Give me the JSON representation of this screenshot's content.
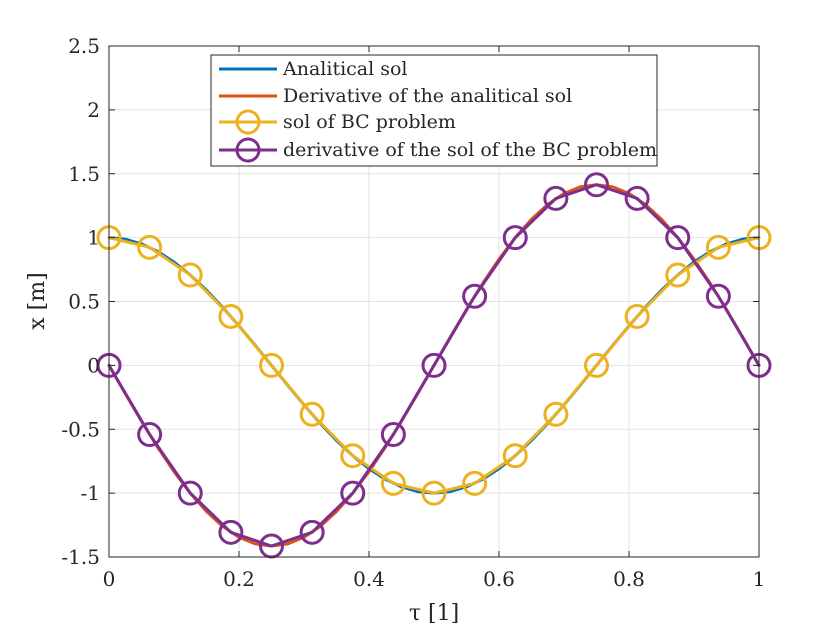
{
  "chart_data": {
    "type": "line",
    "xlabel": "τ [1]",
    "ylabel": "x [m]",
    "xlim": [
      0,
      1
    ],
    "ylim": [
      -1.5,
      2.5
    ],
    "xticks": [
      0,
      0.2,
      0.4,
      0.6,
      0.8,
      1
    ],
    "xtick_labels": [
      "0",
      "0.2",
      "0.4",
      "0.6",
      "0.8",
      "1"
    ],
    "yticks": [
      -1.5,
      -1,
      -0.5,
      0,
      0.5,
      1,
      1.5,
      2,
      2.5
    ],
    "ytick_labels": [
      "-1.5",
      "-1",
      "-0.5",
      "0",
      "0.5",
      "1",
      "1.5",
      "2",
      "2.5"
    ],
    "grid": true,
    "legend_position": "top-center",
    "series": [
      {
        "name": "Analitical sol",
        "style": "line",
        "color": "#0072BD",
        "x": [
          0,
          0.025,
          0.05,
          0.075,
          0.1,
          0.125,
          0.15,
          0.175,
          0.2,
          0.225,
          0.25,
          0.275,
          0.3,
          0.325,
          0.35,
          0.375,
          0.4,
          0.425,
          0.45,
          0.475,
          0.5,
          0.525,
          0.55,
          0.575,
          0.6,
          0.625,
          0.65,
          0.675,
          0.7,
          0.725,
          0.75,
          0.775,
          0.8,
          0.825,
          0.85,
          0.875,
          0.9,
          0.925,
          0.95,
          0.975,
          1
        ],
        "y": [
          1,
          0.988,
          0.951,
          0.891,
          0.809,
          0.707,
          0.588,
          0.454,
          0.309,
          0.156,
          0,
          -0.156,
          -0.309,
          -0.454,
          -0.588,
          -0.707,
          -0.809,
          -0.891,
          -0.951,
          -0.988,
          -1,
          -0.988,
          -0.951,
          -0.891,
          -0.809,
          -0.707,
          -0.588,
          -0.454,
          -0.309,
          -0.156,
          0,
          0.156,
          0.309,
          0.454,
          0.588,
          0.707,
          0.809,
          0.891,
          0.951,
          0.988,
          1
        ]
      },
      {
        "name": "Derivative of the analitical sol",
        "style": "line",
        "color": "#D95319",
        "x": [
          0,
          0.025,
          0.05,
          0.075,
          0.1,
          0.125,
          0.15,
          0.175,
          0.2,
          0.225,
          0.25,
          0.275,
          0.3,
          0.325,
          0.35,
          0.375,
          0.4,
          0.425,
          0.45,
          0.475,
          0.5,
          0.525,
          0.55,
          0.575,
          0.6,
          0.625,
          0.65,
          0.675,
          0.7,
          0.725,
          0.75,
          0.775,
          0.8,
          0.825,
          0.85,
          0.875,
          0.9,
          0.925,
          0.95,
          0.975,
          1
        ],
        "y": [
          0,
          -0.221,
          -0.437,
          -0.642,
          -0.831,
          -1,
          -1.144,
          -1.26,
          -1.345,
          -1.397,
          -1.414,
          -1.397,
          -1.345,
          -1.26,
          -1.144,
          -1,
          -0.831,
          -0.642,
          -0.437,
          -0.221,
          0,
          0.221,
          0.437,
          0.642,
          0.831,
          1,
          1.144,
          1.26,
          1.345,
          1.397,
          1.414,
          1.397,
          1.345,
          1.26,
          1.144,
          1,
          0.831,
          0.642,
          0.437,
          0.221,
          0
        ]
      },
      {
        "name": "sol of BC problem",
        "style": "line-circle",
        "color": "#EDB120",
        "x": [
          0,
          0.0625,
          0.125,
          0.1875,
          0.25,
          0.3125,
          0.375,
          0.4375,
          0.5,
          0.5625,
          0.625,
          0.6875,
          0.75,
          0.8125,
          0.875,
          0.9375,
          1
        ],
        "y": [
          1,
          0.924,
          0.707,
          0.383,
          0,
          -0.383,
          -0.707,
          -0.924,
          -1,
          -0.924,
          -0.707,
          -0.383,
          0,
          0.383,
          0.707,
          0.924,
          1
        ]
      },
      {
        "name": "derivative of the sol of the BC problem",
        "style": "line-circle",
        "color": "#7E2F8E",
        "x": [
          0,
          0.0625,
          0.125,
          0.1875,
          0.25,
          0.3125,
          0.375,
          0.4375,
          0.5,
          0.5625,
          0.625,
          0.6875,
          0.75,
          0.8125,
          0.875,
          0.9375,
          1
        ],
        "y": [
          0,
          -0.541,
          -1,
          -1.307,
          -1.414,
          -1.307,
          -1,
          -0.541,
          0,
          0.541,
          1,
          1.307,
          1.414,
          1.307,
          1,
          0.541,
          0
        ]
      }
    ]
  }
}
